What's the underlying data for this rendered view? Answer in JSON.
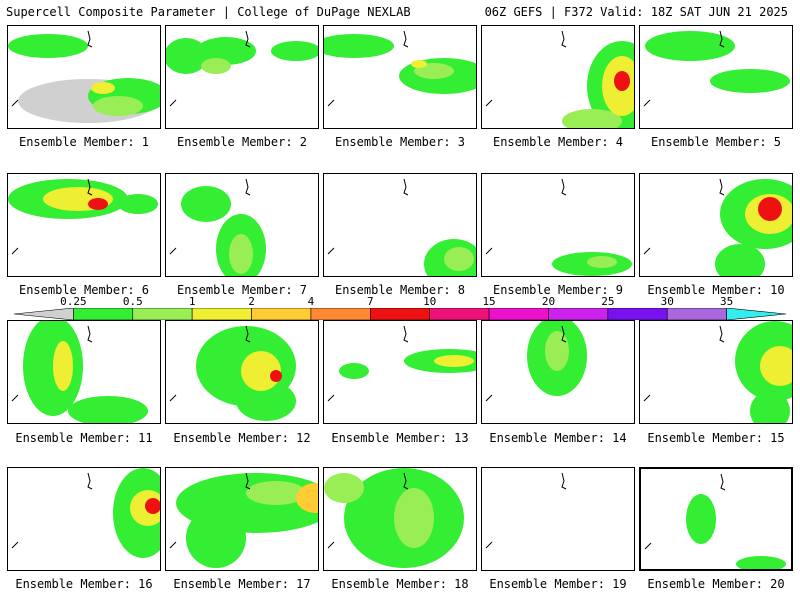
{
  "header": {
    "left": "Supercell Composite Parameter | College of DuPage NEXLAB",
    "right": "06Z GEFS | F372 Valid: 18Z SAT JUN 21 2025"
  },
  "panels": [
    {
      "label": "Ensemble Member: 1"
    },
    {
      "label": "Ensemble Member: 2"
    },
    {
      "label": "Ensemble Member: 3"
    },
    {
      "label": "Ensemble Member: 4"
    },
    {
      "label": "Ensemble Member: 5"
    },
    {
      "label": "Ensemble Member: 6"
    },
    {
      "label": "Ensemble Member: 7"
    },
    {
      "label": "Ensemble Member: 8"
    },
    {
      "label": "Ensemble Member: 9"
    },
    {
      "label": "Ensemble Member: 10"
    },
    {
      "label": "Ensemble Member: 11"
    },
    {
      "label": "Ensemble Member: 12"
    },
    {
      "label": "Ensemble Member: 13"
    },
    {
      "label": "Ensemble Member: 14"
    },
    {
      "label": "Ensemble Member: 15"
    },
    {
      "label": "Ensemble Member: 16"
    },
    {
      "label": "Ensemble Member: 17"
    },
    {
      "label": "Ensemble Member: 18"
    },
    {
      "label": "Ensemble Member: 19"
    },
    {
      "label": "Ensemble Member: 20",
      "selected": true
    }
  ],
  "colorbar": {
    "labels": [
      "0.25",
      "0.5",
      "1",
      "2",
      "4",
      "7",
      "10",
      "15",
      "20",
      "25",
      "30",
      "35"
    ],
    "colors": [
      "#d0d0d0",
      "#33ee33",
      "#99ee55",
      "#eeee33",
      "#ffcc33",
      "#ff8833",
      "#ee1111",
      "#ee1177",
      "#ee11cc",
      "#cc22ee",
      "#7711ee",
      "#aa66dd",
      "#33eeee"
    ]
  }
}
